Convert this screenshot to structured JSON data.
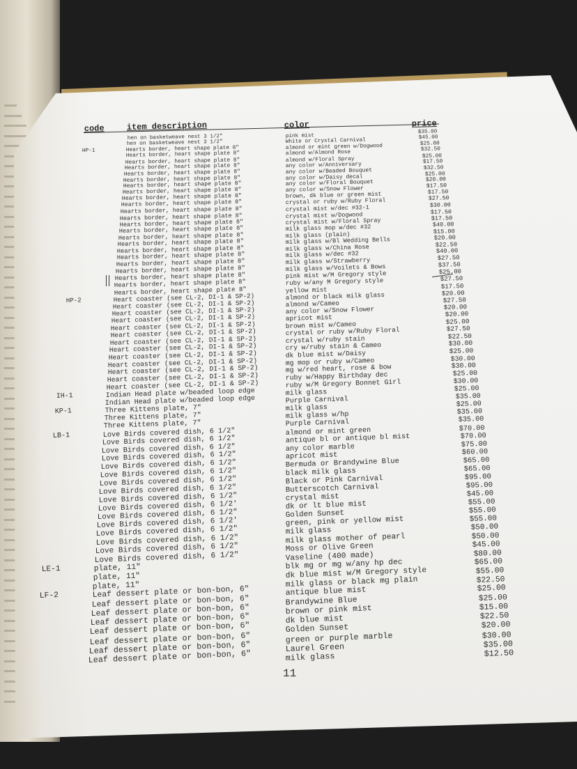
{
  "header": {
    "code": "code",
    "description": "item description",
    "color": "color",
    "price": "price"
  },
  "page_number": "11",
  "rows": [
    {
      "code": "",
      "description": "hen on basketweave nest 3 1/2\"",
      "color": "pink mist",
      "price": "$35.00"
    },
    {
      "code": "",
      "description": "hen on basketweave nest 3 1/2\"",
      "color": "White or Crystal Carnival",
      "price": "$45.00"
    },
    {
      "code": "HP-1",
      "description": "Hearts border, heart shape plate 8\"",
      "color": "almond or mint green w/Dogwood",
      "price": "$25.00"
    },
    {
      "code": "",
      "description": "Hearts border, heart shape plate 8\"",
      "color": "almond w/Almond Rose",
      "price": "$32.50"
    },
    {
      "code": "",
      "description": "Hearts border, heart shape plate 8\"",
      "color": "almond w/Floral Spray",
      "price": "$25.00"
    },
    {
      "code": "",
      "description": "Hearts border, heart shape plate 8\"",
      "color": "any color w/Anniversary",
      "price": "$17.50"
    },
    {
      "code": "",
      "description": "Hearts border, heart shape plate 8\"",
      "color": "any color w/Beaded Bouquet",
      "price": "$32.50"
    },
    {
      "code": "",
      "description": "Hearts border, heart shape plate 8\"",
      "color": "any color w/Daisy decal",
      "price": "$25.00"
    },
    {
      "code": "",
      "description": "Hearts border, heart shape plate 8\"",
      "color": "any color w/Floral Bouquet",
      "price": "$20.00"
    },
    {
      "code": "",
      "description": "Hearts border, heart shape plate 8\"",
      "color": "any color w/Snow Flower",
      "price": "$17.50"
    },
    {
      "code": "",
      "description": "Hearts border, heart shape plate 8\"",
      "color": "brown, dk blue or green mist",
      "price": "$17.50"
    },
    {
      "code": "",
      "description": "Hearts border, heart shape plate 8\"",
      "color": "crystal or ruby w/Ruby Floral",
      "price": "$27.50"
    },
    {
      "code": "",
      "description": "Hearts border, heart shape plate 8\"",
      "color": "crystal mist w/dec #32-1",
      "price": "$30.00"
    },
    {
      "code": "",
      "description": "Hearts border, heart shape plate 8\"",
      "color": "crystal mist w/Dogwood",
      "price": "$17.50"
    },
    {
      "code": "",
      "description": "Hearts border, heart shape plate 8\"",
      "color": "crystal mist w/Floral Spray",
      "price": "$17.50"
    },
    {
      "code": "",
      "description": "Hearts border, heart shape plate 8\"",
      "color": "milk glass mop w/dec #32",
      "price": "$40.00"
    },
    {
      "code": "",
      "description": "Hearts border, heart shape plate 8\"",
      "color": "milk glass (plain)",
      "price": "$15.00"
    },
    {
      "code": "",
      "description": "Hearts border, heart shape plate 8\"",
      "color": "milk glass w/Bl Wedding Bells",
      "price": "$20.00"
    },
    {
      "code": "",
      "description": "Hearts border, heart shape plate 8\"",
      "color": "milk glass w/China Rose",
      "price": "$22.50"
    },
    {
      "code": "",
      "description": "Hearts border, heart shape plate 8\"",
      "color": "milk glass w/dec #32",
      "price": "$40.00"
    },
    {
      "code": "",
      "description": "Hearts border, heart shape plate 8\"",
      "color": "milk glass w/Strawberry",
      "price": "$27.50"
    },
    {
      "code": "",
      "description": "Hearts border, heart shape plate 8\"",
      "color": "milk glass w/Voilets & Bows",
      "price": "$37.50"
    },
    {
      "code": "",
      "description": "Hearts border, heart shape plate 8\"",
      "color": "pink mist w/M Gregory style",
      "price": "$25.00"
    },
    {
      "code": "",
      "description": "Hearts border, heart shape plate 8\"",
      "color": "ruby w/any M Gregory style",
      "price": "$27.50"
    },
    {
      "code": "",
      "description": "Hearts border, heart shape plate 8\"",
      "color": "yellow mist",
      "price": "$17.50"
    },
    {
      "code": "HP-2",
      "description": "Heart coaster (see CL-2, DI-1 & SP-2)",
      "color": "almond or black milk glass",
      "price": "$20.00"
    },
    {
      "code": "",
      "description": "Heart coaster (see CL-2, DI-1 & SP-2)",
      "color": "almond w/Cameo",
      "price": "$27.50"
    },
    {
      "code": "",
      "description": "Heart coaster (see CL-2, DI-1 & SP-2)",
      "color": "any color w/Snow Flower",
      "price": "$20.00"
    },
    {
      "code": "",
      "description": "Heart coaster (see CL-2, DI-1 & SP-2)",
      "color": "apricot mist",
      "price": "$20.00"
    },
    {
      "code": "",
      "description": "Heart coaster (see CL-2, DI-1 & SP-2)",
      "color": "brown mist w/Cameo",
      "price": "$25.00"
    },
    {
      "code": "",
      "description": "Heart coaster (see CL-2, DI-1 & SP-2)",
      "color": "crystal or ruby w/Ruby Floral",
      "price": "$27.50"
    },
    {
      "code": "",
      "description": "Heart coaster (see CL-2, DI-1 & SP-2)",
      "color": "crystal w/ruby stain",
      "price": "$22.50"
    },
    {
      "code": "",
      "description": "Heart coaster (see CL-2, DI-1 & SP-2)",
      "color": "cry w/ruby stain & Cameo",
      "price": "$30.00"
    },
    {
      "code": "",
      "description": "Heart coaster (see CL-2, DI-1 & SP-2)",
      "color": "dk blue mist w/Daisy",
      "price": "$25.00"
    },
    {
      "code": "",
      "description": "Heart coaster (see CL-2, DI-1 & SP-2)",
      "color": "mg mop or ruby w/Cameo",
      "price": "$30.00"
    },
    {
      "code": "",
      "description": "Heart coaster (see CL-2, DI-1 & SP-2)",
      "color": "mg w/red heart, rose & bow",
      "price": "$30.00"
    },
    {
      "code": "",
      "description": "Heart coaster (see CL-2, DI-1 & SP-2)",
      "color": "ruby w/Happy Birthday dec",
      "price": "$25.00"
    },
    {
      "code": "",
      "description": "Heart coaster (see CL-2, DI-1 & SP-2)",
      "color": "ruby w/M Gregory Bonnet Girl",
      "price": "$30.00"
    },
    {
      "code": "IH-1",
      "description": "Indian Head plate w/beaded loop edge",
      "color": "milk glass",
      "price": "$25.00"
    },
    {
      "code": "",
      "description": "Indian Head plate w/beaded loop edge",
      "color": "Purple Carnival",
      "price": "$35.00"
    },
    {
      "code": "KP-1",
      "description": "Three Kittens plate, 7\"",
      "color": "milk glass",
      "price": "$25.00"
    },
    {
      "code": "",
      "description": "Three Kittens plate, 7\"",
      "color": "milk glass w/hp",
      "price": "$35.00"
    },
    {
      "code": "",
      "description": "Three Kittens plate, 7\"",
      "color": "Purple Carnival",
      "price": "$35.00"
    },
    {
      "code": "LB-1",
      "description": "Love Birds covered dish, 6 1/2\"",
      "color": "almond or mint green",
      "price": "$70.00"
    },
    {
      "code": "",
      "description": "Love Birds covered dish, 6 1/2\"",
      "color": "antique bl or antique bl mist",
      "price": "$70.00"
    },
    {
      "code": "",
      "description": "Love Birds covered dish, 6 1/2\"",
      "color": "any color marble",
      "price": "$75.00"
    },
    {
      "code": "",
      "description": "Love Birds covered dish, 6 1/2\"",
      "color": "apricot mist",
      "price": "$60.00"
    },
    {
      "code": "",
      "description": "Love Birds covered dish, 6 1/2\"",
      "color": "Bermuda or Brandywine Blue",
      "price": "$65.00"
    },
    {
      "code": "",
      "description": "Love Birds covered dish, 6 1/2\"",
      "color": "black milk glass",
      "price": "$65.00"
    },
    {
      "code": "",
      "description": "Love Birds covered dish, 6 1/2\"",
      "color": "Black or Pink Carnival",
      "price": "$95.00"
    },
    {
      "code": "",
      "description": "Love Birds covered dish, 6 1/2\"",
      "color": "Butterscotch Carnival",
      "price": "$95.00"
    },
    {
      "code": "",
      "description": "Love Birds covered dish, 6 1/2\"",
      "color": "crystal mist",
      "price": "$45.00"
    },
    {
      "code": "",
      "description": "Love Birds covered dish, 6 1/2'",
      "color": "dk or lt blue mist",
      "price": "$55.00"
    },
    {
      "code": "",
      "description": "Love Birds covered dish, 6 1/2\"",
      "color": "Golden Sunset",
      "price": "$55.00"
    },
    {
      "code": "",
      "description": "Love Birds covered dish, 6 1/2'",
      "color": "green, pink or yellow mist",
      "price": "$55.00"
    },
    {
      "code": "",
      "description": "Love Birds covered dish, 6 1/2\"",
      "color": "milk glass",
      "price": "$50.00"
    },
    {
      "code": "",
      "description": "Love Birds covered dish, 6 1/2\"",
      "color": "milk glass mother of pearl",
      "price": "$50.00"
    },
    {
      "code": "",
      "description": "Love Birds covered dish, 6 1/2\"",
      "color": "Moss or Olive Green",
      "price": "$45.00"
    },
    {
      "code": "",
      "description": "Love Birds covered dish, 6 1/2\"",
      "color": "Vaseline (400 made)",
      "price": "$80.00"
    },
    {
      "code": "LE-1",
      "description": "plate, 11\"",
      "color": "blk mg or mg w/any hp dec",
      "price": "$65.00"
    },
    {
      "code": "",
      "description": "plate, 11\"",
      "color": "dk blue mist w/M Gregory style",
      "price": "$55.00"
    },
    {
      "code": "",
      "description": "plate, 11\"",
      "color": "milk glass or black mg plain",
      "price": "$22.50"
    },
    {
      "code": "LF-2",
      "description": "Leaf dessert plate or bon-bon, 6\"",
      "color": "antique blue mist",
      "price": "$25.00"
    },
    {
      "code": "",
      "description": "Leaf dessert plate or bon-bon, 6\"",
      "color": "Brandywine Blue",
      "price": "$25.00"
    },
    {
      "code": "",
      "description": "Leaf dessert plate or bon-bon, 6\"",
      "color": "brown or pink mist",
      "price": "$15.00"
    },
    {
      "code": "",
      "description": "Leaf dessert plate or bon-bon, 6\"",
      "color": "dk blue mist",
      "price": "$22.50"
    },
    {
      "code": "",
      "description": "Leaf dessert plate or bon-bon, 6\"",
      "color": "Golden Sunset",
      "price": "$20.00"
    },
    {
      "code": "",
      "description": "Leaf dessert plate or bon-bon, 6\"",
      "color": "green or purple marble",
      "price": "$30.00"
    },
    {
      "code": "",
      "description": "Leaf dessert plate or bon-bon, 6\"",
      "color": "Laurel Green",
      "price": "$35.00"
    },
    {
      "code": "",
      "description": "Leaf dessert plate or bon-bon, 6\"",
      "color": "milk glass",
      "price": "$12.50"
    }
  ]
}
